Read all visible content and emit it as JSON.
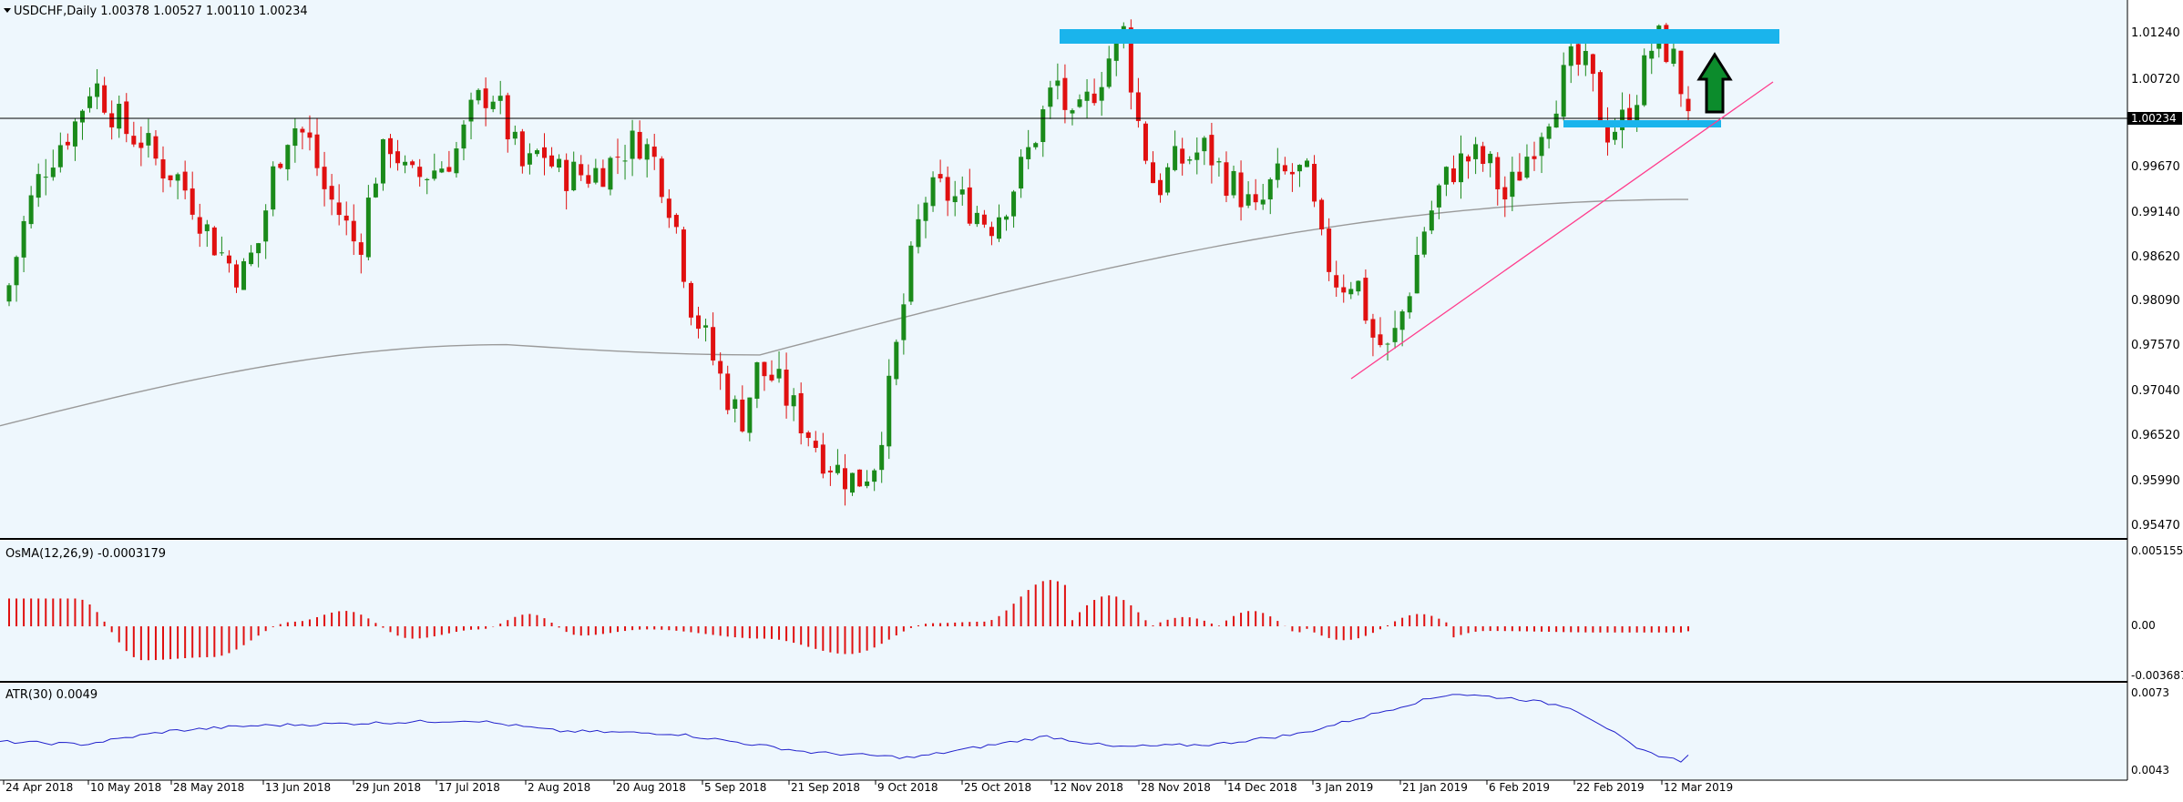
{
  "main_chart": {
    "header": "USDCHF,Daily  1.00378 1.00527 1.00110 1.00234",
    "last_price_label": "1.00234",
    "y_ticks": [
      "1.01240",
      "1.00720",
      "0.99670",
      "0.99140",
      "0.98620",
      "0.98090",
      "0.97570",
      "0.97040",
      "0.96520",
      "0.95990",
      "0.95470"
    ],
    "x_ticks": [
      "24 Apr 2018",
      "10 May 2018",
      "28 May 2018",
      "13 Jun 2018",
      "29 Jun 2018",
      "17 Jul 2018",
      "2 Aug 2018",
      "20 Aug 2018",
      "5 Sep 2018",
      "21 Sep 2018",
      "9 Oct 2018",
      "25 Oct 2018",
      "12 Nov 2018",
      "28 Nov 2018",
      "14 Dec 2018",
      "3 Jan 2019",
      "21 Jan 2019",
      "6 Feb 2019",
      "22 Feb 2019",
      "12 Mar 2019"
    ]
  },
  "osma": {
    "header": "OsMA(12,26,9) -0.0003179",
    "y_ticks": [
      "0.0051559",
      "0.00",
      "-0.0036876"
    ]
  },
  "atr": {
    "header": "ATR(30) 0.0049",
    "y_ticks": [
      "0.0073",
      "0.0043"
    ]
  },
  "colors": {
    "background": "#eef7fd",
    "bull": "#1a8a1a",
    "bear": "#e01010",
    "ma": "#9a9a9a",
    "zone": "#1ab4ec",
    "trendline": "#ff3c8c",
    "osma_bar": "#e01010",
    "atr_line": "#2222cc",
    "arrow_fill": "#0c8c2c"
  },
  "chart_data": [
    {
      "type": "candlestick",
      "symbol": "USDCHF",
      "timeframe": "Daily",
      "ohlc_last": {
        "open": 1.00378,
        "high": 1.00527,
        "low": 1.0011,
        "close": 1.00234
      },
      "close_series": [
        0.982,
        0.99,
        0.9955,
        0.9985,
        1.001,
        1.006,
        1.003,
        1.0,
        0.999,
        0.996,
        0.995,
        0.992,
        0.988,
        0.985,
        0.983,
        0.987,
        0.996,
        1.001,
        0.999,
        0.993,
        0.99,
        0.986,
        0.995,
        0.999,
        0.994,
        0.995,
        0.996,
        0.998,
        1.003,
        1.005,
        1.0,
        0.995,
        0.998,
        0.995,
        0.995,
        0.995,
        0.996,
        0.998,
        0.999,
        0.996,
        0.99,
        0.98,
        0.975,
        0.97,
        0.966,
        0.972,
        0.971,
        0.968,
        0.965,
        0.962,
        0.96,
        0.959,
        0.961,
        0.97,
        0.982,
        0.992,
        0.993,
        0.992,
        0.991,
        0.989,
        0.992,
        0.996,
        1.001,
        1.006,
        1.0,
        1.004,
        1.008,
        1.012,
        1.0,
        0.993,
        0.996,
        0.997,
        0.998,
        0.995,
        0.993,
        0.99,
        0.994,
        0.995,
        0.995,
        0.986,
        0.982,
        0.983,
        0.976,
        0.974,
        0.98,
        0.988,
        0.993,
        0.996,
        0.997,
        0.996,
        0.992,
        0.996,
        1.0,
        1.004,
        1.008,
        1.007,
        1.0,
        1.001,
        1.005,
        1.011,
        1.009,
        1.0023
      ],
      "moving_average": {
        "start": 0.9655,
        "low_point": 0.9738,
        "end": 0.992
      },
      "horizontal_zone_upper": 1.0124,
      "horizontal_zone_lower": 1.0018,
      "horizontal_line": 1.00234,
      "trendline": {
        "from": 0.9725,
        "to": 1.008
      },
      "ylim": [
        0.953,
        1.0145
      ]
    },
    {
      "type": "bar",
      "name": "OsMA(12,26,9)",
      "last_value": -0.0003179,
      "ylim": [
        -0.0036876,
        0.0051559
      ]
    },
    {
      "type": "line",
      "name": "ATR(30)",
      "last_value": 0.0049,
      "ylim": [
        0.0043,
        0.0073
      ]
    }
  ]
}
